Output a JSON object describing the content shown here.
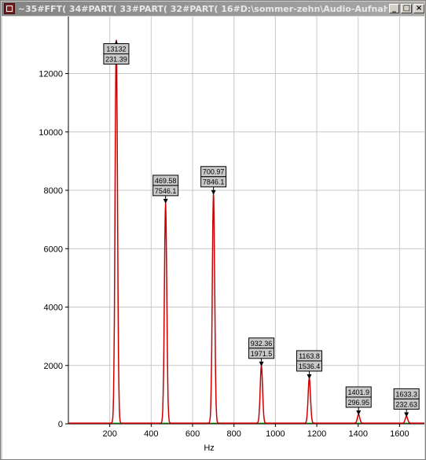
{
  "window": {
    "title": "~35#FFT( 34#PART( 33#PART( 32#PART( 16#D:\\sommer-zehn\\Audio-Aufnah..."
  },
  "colors": {
    "spectrum": "#cc0000",
    "baseline": "#22aa22",
    "grid": "#c8c8c8"
  },
  "chart_data": {
    "type": "line",
    "xlabel": "Hz",
    "ylabel": "",
    "xlim": [
      0,
      1720
    ],
    "ylim": [
      0,
      13200
    ],
    "x_ticks": [
      200,
      400,
      600,
      800,
      1000,
      1200,
      1400,
      1600
    ],
    "y_ticks": [
      0,
      2000,
      4000,
      6000,
      8000,
      10000,
      12000
    ],
    "grid": true,
    "peaks": [
      {
        "x": 231.39,
        "y": 13132,
        "label_top": "13132",
        "label_bottom": "231.39",
        "marker": "up"
      },
      {
        "x": 469.58,
        "y": 7546.1,
        "label_top": "469.58",
        "label_bottom": "7546.1",
        "marker": "down"
      },
      {
        "x": 700.97,
        "y": 7846.1,
        "label_top": "700.97",
        "label_bottom": "7846.1",
        "marker": "down"
      },
      {
        "x": 932.36,
        "y": 1971.5,
        "label_top": "932.36",
        "label_bottom": "1971.5",
        "marker": "down"
      },
      {
        "x": 1163.8,
        "y": 1536.4,
        "label_top": "1163.8",
        "label_bottom": "1536.4",
        "marker": "down"
      },
      {
        "x": 1401.9,
        "y": 296.95,
        "label_top": "1401.9",
        "label_bottom": "296.95",
        "marker": "down"
      },
      {
        "x": 1633.3,
        "y": 232.63,
        "label_top": "1633.3",
        "label_bottom": "232.63",
        "marker": "down"
      }
    ]
  }
}
